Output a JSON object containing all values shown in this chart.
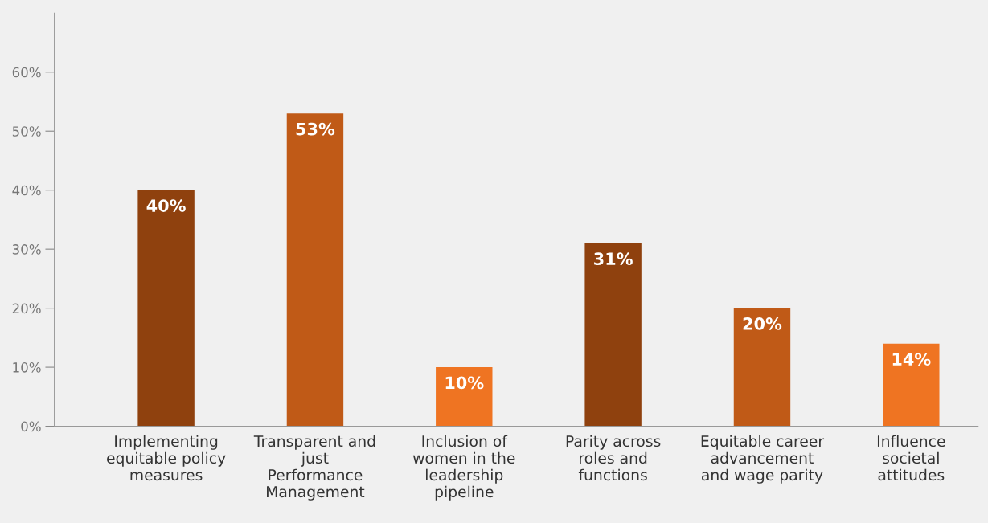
{
  "chart_data": {
    "type": "bar",
    "categories": [
      "Implementing\nequitable policy\nmeasures",
      "Transparent and\njust\nPerformance\nManagement",
      "Inclusion of\nwomen in the\nleadership\npipeline",
      "Parity across\nroles and\nfunctions",
      "Equitable career\nadvancement\nand wage parity",
      "Influence\nsocietal\nattitudes"
    ],
    "values": [
      40,
      53,
      10,
      31,
      20,
      14
    ],
    "value_labels": [
      "40%",
      "53%",
      "10%",
      "31%",
      "20%",
      "14%"
    ],
    "colors": [
      "#8f410e",
      "#c05a17",
      "#ef7422",
      "#8f410e",
      "#c05a17",
      "#ef7422"
    ],
    "ylim": [
      0,
      70
    ],
    "yticks": [
      {
        "value": 0,
        "label": "0%"
      },
      {
        "value": 10,
        "label": "10%"
      },
      {
        "value": 20,
        "label": "20%"
      },
      {
        "value": 30,
        "label": "30%"
      },
      {
        "value": 40,
        "label": "40%"
      },
      {
        "value": 50,
        "label": "50%"
      },
      {
        "value": 60,
        "label": "60%"
      }
    ],
    "grid": false,
    "legend": false
  }
}
